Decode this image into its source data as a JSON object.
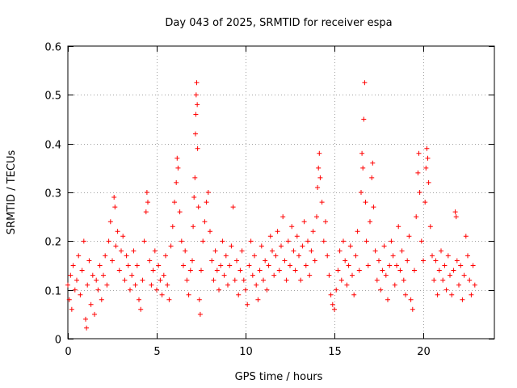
{
  "chart_data": {
    "type": "scatter",
    "title": "Day 043 of 2025, SRMTID for receiver espa",
    "xlabel": "GPS time / hours",
    "ylabel": "SRMTID / TECUs",
    "xlim": [
      0,
      24
    ],
    "ylim": [
      0,
      0.6
    ],
    "xticks": [
      0,
      5,
      10,
      15,
      20
    ],
    "xtick_labels": [
      "0",
      "5",
      "10",
      "15",
      "20"
    ],
    "yticks": [
      0,
      0.1,
      0.2,
      0.3,
      0.4,
      0.5,
      0.6
    ],
    "ytick_labels": [
      "0",
      "0.1",
      "0.2",
      "0.3",
      "0.4",
      "0.5",
      "0.6"
    ],
    "grid": true,
    "marker": "+",
    "series": [
      {
        "name": "SRMTID",
        "color": "#ff0000",
        "points": [
          [
            0.0,
            0.11
          ],
          [
            0.08,
            0.08
          ],
          [
            0.15,
            0.13
          ],
          [
            0.22,
            0.06
          ],
          [
            0.3,
            0.15
          ],
          [
            0.4,
            0.1
          ],
          [
            0.5,
            0.12
          ],
          [
            0.6,
            0.17
          ],
          [
            0.7,
            0.09
          ],
          [
            0.8,
            0.14
          ],
          [
            0.9,
            0.2
          ],
          [
            1.0,
            0.04
          ],
          [
            1.05,
            0.022
          ],
          [
            1.1,
            0.11
          ],
          [
            1.2,
            0.16
          ],
          [
            1.3,
            0.07
          ],
          [
            1.4,
            0.13
          ],
          [
            1.5,
            0.05
          ],
          [
            1.6,
            0.12
          ],
          [
            1.7,
            0.1
          ],
          [
            1.8,
            0.15
          ],
          [
            1.9,
            0.08
          ],
          [
            2.0,
            0.13
          ],
          [
            2.1,
            0.17
          ],
          [
            2.2,
            0.11
          ],
          [
            2.3,
            0.2
          ],
          [
            2.4,
            0.24
          ],
          [
            2.5,
            0.16
          ],
          [
            2.6,
            0.29
          ],
          [
            2.65,
            0.27
          ],
          [
            2.7,
            0.19
          ],
          [
            2.8,
            0.22
          ],
          [
            2.9,
            0.14
          ],
          [
            3.0,
            0.18
          ],
          [
            3.1,
            0.21
          ],
          [
            3.2,
            0.12
          ],
          [
            3.3,
            0.17
          ],
          [
            3.4,
            0.15
          ],
          [
            3.5,
            0.1
          ],
          [
            3.6,
            0.13
          ],
          [
            3.7,
            0.18
          ],
          [
            3.8,
            0.11
          ],
          [
            3.9,
            0.15
          ],
          [
            4.0,
            0.08
          ],
          [
            4.1,
            0.06
          ],
          [
            4.2,
            0.12
          ],
          [
            4.3,
            0.2
          ],
          [
            4.4,
            0.26
          ],
          [
            4.45,
            0.3
          ],
          [
            4.5,
            0.28
          ],
          [
            4.6,
            0.16
          ],
          [
            4.7,
            0.11
          ],
          [
            4.8,
            0.14
          ],
          [
            4.9,
            0.18
          ],
          [
            5.0,
            0.1
          ],
          [
            5.1,
            0.15
          ],
          [
            5.2,
            0.12
          ],
          [
            5.3,
            0.09
          ],
          [
            5.4,
            0.13
          ],
          [
            5.5,
            0.17
          ],
          [
            5.6,
            0.11
          ],
          [
            5.7,
            0.08
          ],
          [
            5.8,
            0.19
          ],
          [
            5.9,
            0.23
          ],
          [
            6.0,
            0.28
          ],
          [
            6.1,
            0.32
          ],
          [
            6.15,
            0.37
          ],
          [
            6.2,
            0.35
          ],
          [
            6.3,
            0.26
          ],
          [
            6.4,
            0.2
          ],
          [
            6.5,
            0.15
          ],
          [
            6.6,
            0.18
          ],
          [
            6.7,
            0.12
          ],
          [
            6.8,
            0.09
          ],
          [
            6.9,
            0.14
          ],
          [
            7.0,
            0.16
          ],
          [
            7.05,
            0.23
          ],
          [
            7.1,
            0.29
          ],
          [
            7.15,
            0.33
          ],
          [
            7.18,
            0.42
          ],
          [
            7.2,
            0.46
          ],
          [
            7.22,
            0.5
          ],
          [
            7.25,
            0.525
          ],
          [
            7.28,
            0.48
          ],
          [
            7.3,
            0.39
          ],
          [
            7.35,
            0.27
          ],
          [
            7.4,
            0.08
          ],
          [
            7.45,
            0.05
          ],
          [
            7.5,
            0.14
          ],
          [
            7.6,
            0.2
          ],
          [
            7.7,
            0.24
          ],
          [
            7.8,
            0.28
          ],
          [
            7.9,
            0.3
          ],
          [
            8.0,
            0.22
          ],
          [
            8.1,
            0.16
          ],
          [
            8.2,
            0.12
          ],
          [
            8.3,
            0.18
          ],
          [
            8.4,
            0.14
          ],
          [
            8.5,
            0.1
          ],
          [
            8.6,
            0.15
          ],
          [
            8.7,
            0.2
          ],
          [
            8.8,
            0.13
          ],
          [
            8.9,
            0.17
          ],
          [
            9.0,
            0.11
          ],
          [
            9.1,
            0.15
          ],
          [
            9.2,
            0.19
          ],
          [
            9.3,
            0.27
          ],
          [
            9.4,
            0.12
          ],
          [
            9.5,
            0.16
          ],
          [
            9.6,
            0.09
          ],
          [
            9.7,
            0.14
          ],
          [
            9.8,
            0.18
          ],
          [
            9.9,
            0.12
          ],
          [
            10.0,
            0.1
          ],
          [
            10.1,
            0.07
          ],
          [
            10.2,
            0.15
          ],
          [
            10.3,
            0.2
          ],
          [
            10.4,
            0.13
          ],
          [
            10.5,
            0.17
          ],
          [
            10.6,
            0.11
          ],
          [
            10.7,
            0.08
          ],
          [
            10.8,
            0.14
          ],
          [
            10.9,
            0.19
          ],
          [
            11.0,
            0.12
          ],
          [
            11.1,
            0.16
          ],
          [
            11.2,
            0.1
          ],
          [
            11.3,
            0.15
          ],
          [
            11.4,
            0.21
          ],
          [
            11.5,
            0.18
          ],
          [
            11.6,
            0.13
          ],
          [
            11.7,
            0.17
          ],
          [
            11.8,
            0.22
          ],
          [
            11.9,
            0.14
          ],
          [
            12.0,
            0.19
          ],
          [
            12.1,
            0.25
          ],
          [
            12.2,
            0.16
          ],
          [
            12.3,
            0.12
          ],
          [
            12.4,
            0.2
          ],
          [
            12.5,
            0.15
          ],
          [
            12.6,
            0.23
          ],
          [
            12.7,
            0.18
          ],
          [
            12.8,
            0.14
          ],
          [
            12.9,
            0.21
          ],
          [
            13.0,
            0.17
          ],
          [
            13.1,
            0.12
          ],
          [
            13.2,
            0.19
          ],
          [
            13.3,
            0.24
          ],
          [
            13.4,
            0.15
          ],
          [
            13.5,
            0.2
          ],
          [
            13.6,
            0.13
          ],
          [
            13.7,
            0.18
          ],
          [
            13.8,
            0.22
          ],
          [
            13.9,
            0.16
          ],
          [
            14.0,
            0.25
          ],
          [
            14.05,
            0.31
          ],
          [
            14.1,
            0.35
          ],
          [
            14.15,
            0.38
          ],
          [
            14.2,
            0.33
          ],
          [
            14.3,
            0.28
          ],
          [
            14.4,
            0.2
          ],
          [
            14.5,
            0.24
          ],
          [
            14.6,
            0.17
          ],
          [
            14.7,
            0.13
          ],
          [
            14.8,
            0.09
          ],
          [
            14.9,
            0.07
          ],
          [
            15.0,
            0.06
          ],
          [
            15.1,
            0.1
          ],
          [
            15.2,
            0.14
          ],
          [
            15.3,
            0.18
          ],
          [
            15.4,
            0.12
          ],
          [
            15.5,
            0.2
          ],
          [
            15.6,
            0.16
          ],
          [
            15.7,
            0.11
          ],
          [
            15.8,
            0.15
          ],
          [
            15.9,
            0.19
          ],
          [
            16.0,
            0.13
          ],
          [
            16.1,
            0.09
          ],
          [
            16.2,
            0.17
          ],
          [
            16.3,
            0.22
          ],
          [
            16.4,
            0.14
          ],
          [
            16.5,
            0.3
          ],
          [
            16.55,
            0.38
          ],
          [
            16.6,
            0.35
          ],
          [
            16.65,
            0.45
          ],
          [
            16.7,
            0.525
          ],
          [
            16.75,
            0.28
          ],
          [
            16.8,
            0.2
          ],
          [
            16.9,
            0.15
          ],
          [
            17.0,
            0.24
          ],
          [
            17.1,
            0.33
          ],
          [
            17.15,
            0.36
          ],
          [
            17.2,
            0.27
          ],
          [
            17.3,
            0.18
          ],
          [
            17.4,
            0.12
          ],
          [
            17.5,
            0.16
          ],
          [
            17.6,
            0.1
          ],
          [
            17.7,
            0.14
          ],
          [
            17.8,
            0.19
          ],
          [
            17.9,
            0.13
          ],
          [
            18.0,
            0.08
          ],
          [
            18.1,
            0.15
          ],
          [
            18.2,
            0.2
          ],
          [
            18.3,
            0.17
          ],
          [
            18.4,
            0.11
          ],
          [
            18.5,
            0.15
          ],
          [
            18.6,
            0.23
          ],
          [
            18.7,
            0.14
          ],
          [
            18.8,
            0.18
          ],
          [
            18.9,
            0.12
          ],
          [
            19.0,
            0.09
          ],
          [
            19.1,
            0.16
          ],
          [
            19.2,
            0.21
          ],
          [
            19.3,
            0.08
          ],
          [
            19.4,
            0.06
          ],
          [
            19.5,
            0.14
          ],
          [
            19.6,
            0.25
          ],
          [
            19.7,
            0.34
          ],
          [
            19.75,
            0.38
          ],
          [
            19.8,
            0.3
          ],
          [
            19.9,
            0.2
          ],
          [
            20.0,
            0.16
          ],
          [
            20.1,
            0.28
          ],
          [
            20.15,
            0.35
          ],
          [
            20.2,
            0.39
          ],
          [
            20.25,
            0.37
          ],
          [
            20.3,
            0.32
          ],
          [
            20.4,
            0.23
          ],
          [
            20.5,
            0.17
          ],
          [
            20.6,
            0.12
          ],
          [
            20.7,
            0.16
          ],
          [
            20.8,
            0.09
          ],
          [
            20.9,
            0.14
          ],
          [
            21.0,
            0.18
          ],
          [
            21.1,
            0.12
          ],
          [
            21.2,
            0.15
          ],
          [
            21.3,
            0.1
          ],
          [
            21.4,
            0.17
          ],
          [
            21.5,
            0.13
          ],
          [
            21.6,
            0.09
          ],
          [
            21.7,
            0.14
          ],
          [
            21.8,
            0.26
          ],
          [
            21.85,
            0.25
          ],
          [
            21.9,
            0.16
          ],
          [
            22.0,
            0.11
          ],
          [
            22.1,
            0.15
          ],
          [
            22.2,
            0.08
          ],
          [
            22.3,
            0.13
          ],
          [
            22.4,
            0.21
          ],
          [
            22.5,
            0.17
          ],
          [
            22.6,
            0.12
          ],
          [
            22.7,
            0.09
          ],
          [
            22.8,
            0.15
          ],
          [
            22.9,
            0.11
          ]
        ]
      }
    ]
  }
}
